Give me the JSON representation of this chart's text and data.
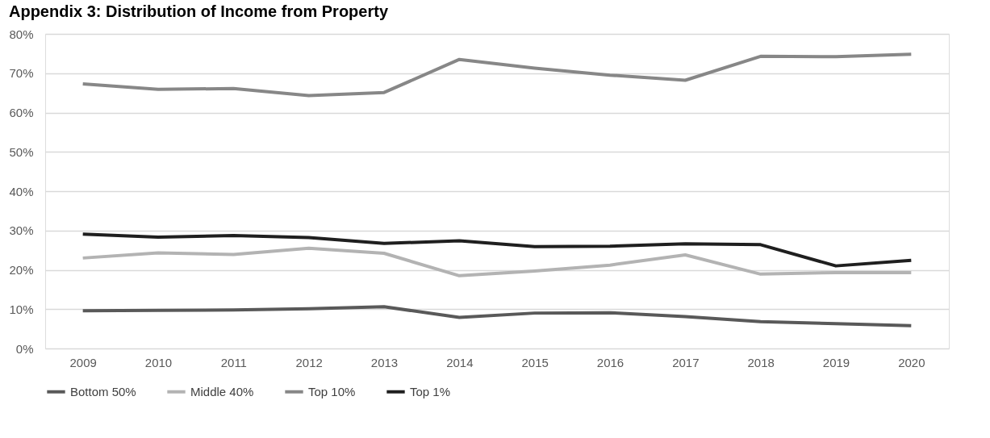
{
  "chart_data": {
    "type": "line",
    "title": "Appendix 3: Distribution of Income from Property",
    "categories": [
      "2009",
      "2010",
      "2011",
      "2012",
      "2013",
      "2014",
      "2015",
      "2016",
      "2017",
      "2018",
      "2019",
      "2020"
    ],
    "series": [
      {
        "name": "Bottom 50%",
        "color": "#595959",
        "values": [
          9.6,
          9.7,
          9.8,
          10.1,
          10.6,
          7.9,
          9.0,
          9.1,
          8.1,
          6.8,
          6.3,
          5.8
        ]
      },
      {
        "name": "Middle 40%",
        "color": "#b3b3b3",
        "values": [
          23.0,
          24.3,
          23.9,
          25.5,
          24.2,
          18.5,
          19.7,
          21.2,
          23.8,
          18.9,
          19.3,
          19.3
        ]
      },
      {
        "name": "Top 10%",
        "color": "#878787",
        "values": [
          67.3,
          65.9,
          66.1,
          64.3,
          65.1,
          73.5,
          71.3,
          69.5,
          68.2,
          74.3,
          74.2,
          74.8
        ]
      },
      {
        "name": "Top 1%",
        "color": "#1f1f1f",
        "values": [
          29.1,
          28.3,
          28.7,
          28.2,
          26.7,
          27.4,
          25.9,
          26.0,
          26.6,
          26.4,
          21.0,
          22.4
        ]
      }
    ],
    "ylim": [
      0,
      80
    ],
    "yticks": [
      {
        "value": 0,
        "label": "0%"
      },
      {
        "value": 10,
        "label": "10%"
      },
      {
        "value": 20,
        "label": "20%"
      },
      {
        "value": 30,
        "label": "30%"
      },
      {
        "value": 40,
        "label": "40%"
      },
      {
        "value": 50,
        "label": "50%"
      },
      {
        "value": 60,
        "label": "60%"
      },
      {
        "value": 70,
        "label": "70%"
      },
      {
        "value": 80,
        "label": "80%"
      }
    ],
    "grid": "y",
    "legend": "bottom",
    "marker": "none",
    "line_style": "solid"
  }
}
